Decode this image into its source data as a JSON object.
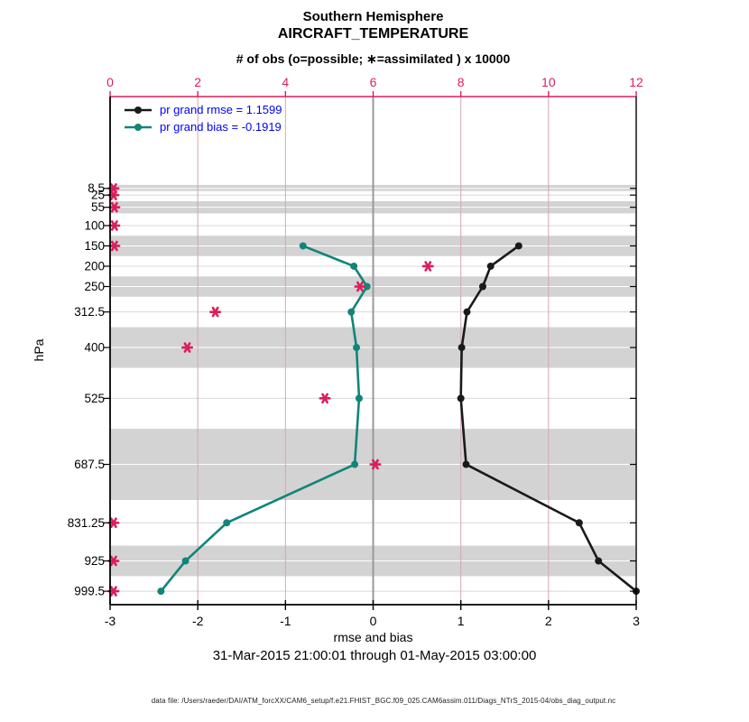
{
  "colors": {
    "accent_pink": "#dc1e5a",
    "grid_pink": "#d9a4b0",
    "rmse_black": "#1a1a1a",
    "bias_teal": "#10857a",
    "legend_blue": "#0000ff",
    "band_gray": "#d3d3d3",
    "level_line_gray": "#d8d8d8",
    "zero_line_gray": "#999999"
  },
  "chart_data": {
    "type": "line",
    "title": "Southern Hemisphere",
    "subtitle": "AIRCRAFT_TEMPERATURE",
    "top_axis": {
      "label": "# of obs (o=possible; ∗=assimilated ) x 10000",
      "range": [
        0,
        12
      ],
      "ticks": [
        0,
        2,
        4,
        6,
        8,
        10,
        12
      ]
    },
    "bottom_axis": {
      "label": "rmse and bias",
      "range": [
        -3,
        3
      ],
      "ticks": [
        -3,
        -2,
        -1,
        0,
        1,
        2,
        3
      ]
    },
    "y_axis": {
      "unit": "hPa",
      "orientation": "pressure increases downward, linear",
      "levels": [
        "8.5",
        "25",
        "55",
        "100",
        "150",
        "200",
        "250",
        "312.5",
        "400",
        "525",
        "687.5",
        "831.25",
        "925",
        "999.5"
      ]
    },
    "series": [
      {
        "id": "rmse",
        "name": "pr grand rmse = 1.1599",
        "levels": [
          150,
          200,
          250,
          312.5,
          400,
          525,
          687.5,
          831.25,
          925,
          999.5
        ],
        "values": [
          1.66,
          1.34,
          1.25,
          1.07,
          1.01,
          1.0,
          1.06,
          2.35,
          2.57,
          3.0
        ]
      },
      {
        "id": "bias",
        "name": "pr grand bias = -0.1919",
        "levels": [
          150,
          200,
          250,
          312.5,
          400,
          525,
          687.5,
          831.25,
          925,
          999.5
        ],
        "values": [
          -0.8,
          -0.22,
          -0.07,
          -0.25,
          -0.19,
          -0.16,
          -0.21,
          -1.67,
          -2.14,
          -2.42
        ]
      }
    ],
    "obs_counts_x10000": {
      "levels": [
        8.5,
        25,
        55,
        100,
        150,
        200,
        250,
        312.5,
        400,
        525,
        687.5,
        831.25,
        925,
        999.5
      ],
      "values": [
        0.08,
        0.08,
        0.1,
        0.1,
        0.1,
        7.25,
        5.7,
        2.4,
        1.76,
        4.9,
        6.05,
        0.08,
        0.08,
        0.08
      ]
    },
    "shaded_layers_hpa": [
      [
        0,
        15
      ],
      [
        40,
        70
      ],
      [
        125,
        175
      ],
      [
        225,
        275
      ],
      [
        350,
        450
      ],
      [
        600,
        775
      ],
      [
        887.5,
        962.5
      ]
    ],
    "zero_reference_x": 0,
    "grid": "pink vertical lines at top-axis ticks; light horizontal line at every level",
    "legend_position": "top-left inside plot",
    "timespan": "31-Mar-2015 21:00:01 through 01-May-2015 03:00:00",
    "datafile": "data file: /Users/raeder/DAI/ATM_forcXX/CAM6_setup/f.e21.FHIST_BGC.f09_025.CAM6assim.011/Diags_NTrS_2015-04/obs_diag_output.nc"
  }
}
